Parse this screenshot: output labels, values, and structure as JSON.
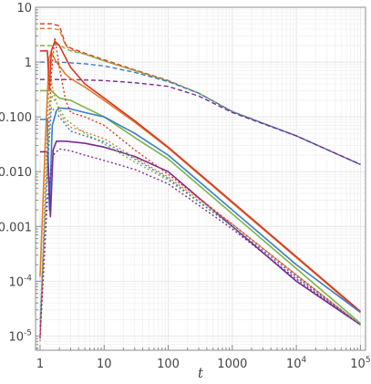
{
  "chart_data": {
    "type": "line",
    "xlabel": "t",
    "ylabel": "",
    "xscale": "log",
    "yscale": "log",
    "xlim": [
      0.85,
      120000
    ],
    "ylim": [
      5.5e-06,
      10
    ],
    "grid": true,
    "x_ticks": [
      {
        "value": 1,
        "label": "1"
      },
      {
        "value": 10,
        "label": "10"
      },
      {
        "value": 100,
        "label": "100"
      },
      {
        "value": 1000,
        "label": "1000"
      },
      {
        "value": 10000,
        "base": "10",
        "exp": "4"
      },
      {
        "value": 100000,
        "base": "10",
        "exp": "5"
      }
    ],
    "y_ticks": [
      {
        "value": 10,
        "label": "10"
      },
      {
        "value": 1,
        "label": "1"
      },
      {
        "value": 0.1,
        "label": "0.100"
      },
      {
        "value": 0.01,
        "label": "0.010"
      },
      {
        "value": 0.001,
        "label": "0.001"
      },
      {
        "value": 0.0001,
        "base": "10",
        "exp": "-4"
      },
      {
        "value": 1e-05,
        "base": "10",
        "exp": "-5"
      }
    ],
    "series": [
      {
        "color": "#dd7f2a",
        "dash": "dashed",
        "points": [
          [
            1,
            4.1
          ],
          [
            1.5,
            4.1
          ],
          [
            2,
            3.9
          ],
          [
            2.5,
            2.0
          ],
          [
            3,
            1.7
          ],
          [
            5,
            1.4
          ],
          [
            10,
            1.05
          ],
          [
            30,
            0.7
          ],
          [
            100,
            0.45
          ],
          [
            300,
            0.27
          ],
          [
            1000,
            0.125
          ],
          [
            10000,
            0.045
          ],
          [
            100000,
            0.0135
          ]
        ]
      },
      {
        "color": "#dd3323",
        "dash": "dashed",
        "points": [
          [
            1,
            5.0
          ],
          [
            1.5,
            5.0
          ],
          [
            2,
            4.6
          ],
          [
            2.5,
            2.1
          ],
          [
            3,
            1.8
          ],
          [
            5,
            1.45
          ],
          [
            10,
            1.1
          ],
          [
            30,
            0.72
          ],
          [
            100,
            0.46
          ],
          [
            300,
            0.27
          ],
          [
            1000,
            0.125
          ],
          [
            10000,
            0.045
          ],
          [
            100000,
            0.0135
          ]
        ]
      },
      {
        "color": "#7bb44a",
        "dash": "dashed",
        "points": [
          [
            1,
            2.0
          ],
          [
            1.5,
            2.0
          ],
          [
            2,
            2.1
          ],
          [
            2.5,
            1.75
          ],
          [
            3,
            1.6
          ],
          [
            5,
            1.4
          ],
          [
            10,
            1.05
          ],
          [
            30,
            0.7
          ],
          [
            100,
            0.45
          ],
          [
            300,
            0.27
          ],
          [
            1000,
            0.125
          ],
          [
            10000,
            0.045
          ],
          [
            100000,
            0.0135
          ]
        ]
      },
      {
        "color": "#3a7dc8",
        "dash": "dashed",
        "points": [
          [
            1,
            1.0
          ],
          [
            2,
            1.0
          ],
          [
            5,
            0.93
          ],
          [
            10,
            0.85
          ],
          [
            30,
            0.65
          ],
          [
            100,
            0.44
          ],
          [
            300,
            0.27
          ],
          [
            1000,
            0.125
          ],
          [
            10000,
            0.045
          ],
          [
            100000,
            0.0135
          ]
        ]
      },
      {
        "color": "#7b2a92",
        "dash": "dashed",
        "points": [
          [
            1,
            0.48
          ],
          [
            3,
            0.48
          ],
          [
            10,
            0.46
          ],
          [
            30,
            0.42
          ],
          [
            100,
            0.36
          ],
          [
            300,
            0.24
          ],
          [
            1000,
            0.12
          ],
          [
            10000,
            0.045
          ],
          [
            100000,
            0.0135
          ]
        ]
      },
      {
        "color": "#dd7f2a",
        "dash": "solid",
        "points": [
          [
            1,
            0.00012
          ],
          [
            1.2,
            0.03
          ],
          [
            1.38,
            1.2
          ],
          [
            1.5,
            1.5
          ],
          [
            1.8,
            1.0
          ],
          [
            2.5,
            0.6
          ],
          [
            3,
            0.5
          ],
          [
            5,
            0.35
          ],
          [
            10,
            0.2
          ],
          [
            30,
            0.08
          ],
          [
            100,
            0.027
          ],
          [
            1000,
            0.0027
          ],
          [
            10000,
            0.00027
          ],
          [
            100000,
            2.7e-05
          ]
        ]
      },
      {
        "color": "#dd3323",
        "dash": "solid",
        "points": [
          [
            1,
            1.6
          ],
          [
            1.3,
            1.6
          ],
          [
            1.4,
            0.3
          ],
          [
            1.5,
            1.6
          ],
          [
            1.7,
            2.4
          ],
          [
            2,
            2.0
          ],
          [
            2.5,
            1.2
          ],
          [
            3,
            0.8
          ],
          [
            5,
            0.4
          ],
          [
            10,
            0.22
          ],
          [
            30,
            0.085
          ],
          [
            100,
            0.028
          ],
          [
            1000,
            0.0028
          ],
          [
            10000,
            0.00028
          ],
          [
            100000,
            2.8e-05
          ]
        ]
      },
      {
        "color": "#7bb44a",
        "dash": "solid",
        "points": [
          [
            1,
            0.3
          ],
          [
            1.5,
            0.3
          ],
          [
            2,
            0.22
          ],
          [
            3,
            0.2
          ],
          [
            10,
            0.1
          ],
          [
            30,
            0.042
          ],
          [
            100,
            0.017
          ],
          [
            1000,
            0.0017
          ],
          [
            10000,
            0.00017
          ],
          [
            100000,
            1.7e-05
          ]
        ]
      },
      {
        "color": "#3a7dc8",
        "dash": "solid",
        "points": [
          [
            1,
            0.09
          ],
          [
            1.3,
            0.09
          ],
          [
            1.4,
            0.002
          ],
          [
            1.55,
            0.07
          ],
          [
            1.8,
            0.13
          ],
          [
            2,
            0.145
          ],
          [
            3,
            0.14
          ],
          [
            5,
            0.12
          ],
          [
            10,
            0.1
          ],
          [
            30,
            0.05
          ],
          [
            100,
            0.02
          ],
          [
            1000,
            0.002
          ],
          [
            10000,
            0.0002
          ],
          [
            100000,
            2.7e-05
          ]
        ]
      },
      {
        "color": "#7b2a92",
        "dash": "solid",
        "points": [
          [
            1,
            0.023
          ],
          [
            1.3,
            0.023
          ],
          [
            1.45,
            0.0015
          ],
          [
            1.6,
            0.025
          ],
          [
            1.8,
            0.036
          ],
          [
            2.5,
            0.036
          ],
          [
            5,
            0.033
          ],
          [
            10,
            0.028
          ],
          [
            30,
            0.019
          ],
          [
            100,
            0.01
          ],
          [
            1000,
            0.001
          ],
          [
            10000,
            0.0001
          ],
          [
            100000,
            1.6e-05
          ]
        ]
      },
      {
        "color": "#dd7f2a",
        "dash": "dotted",
        "points": [
          [
            1,
            8e-06
          ],
          [
            1.2,
            0.005
          ],
          [
            1.4,
            0.7
          ],
          [
            1.6,
            0.3
          ],
          [
            2,
            0.12
          ],
          [
            2.5,
            0.08
          ],
          [
            3,
            0.065
          ],
          [
            10,
            0.04
          ],
          [
            30,
            0.018
          ],
          [
            100,
            0.008
          ],
          [
            1000,
            0.0011
          ],
          [
            10000,
            0.00013
          ],
          [
            100000,
            1.6e-05
          ]
        ]
      },
      {
        "color": "#dd3323",
        "dash": "dotted",
        "points": [
          [
            1,
            1e-05
          ],
          [
            1.3,
            0.02
          ],
          [
            1.5,
            0.6
          ],
          [
            1.7,
            2.8
          ],
          [
            2,
            0.8
          ],
          [
            2.5,
            0.2
          ],
          [
            3,
            0.12
          ],
          [
            5,
            0.1
          ],
          [
            10,
            0.07
          ],
          [
            30,
            0.025
          ],
          [
            100,
            0.009
          ],
          [
            1000,
            0.0011
          ],
          [
            10000,
            0.00013
          ],
          [
            100000,
            1.6e-05
          ]
        ]
      },
      {
        "color": "#7bb44a",
        "dash": "dotted",
        "points": [
          [
            1,
            2e-05
          ],
          [
            1.3,
            0.02
          ],
          [
            1.5,
            0.25
          ],
          [
            1.8,
            0.18
          ],
          [
            2.5,
            0.09
          ],
          [
            5,
            0.05
          ],
          [
            10,
            0.032
          ],
          [
            30,
            0.015
          ],
          [
            100,
            0.007
          ],
          [
            1000,
            0.001
          ],
          [
            10000,
            0.00012
          ],
          [
            100000,
            1.6e-05
          ]
        ]
      },
      {
        "color": "#3a7dc8",
        "dash": "dotted",
        "points": [
          [
            1,
            1.5e-05
          ],
          [
            1.3,
            0.01
          ],
          [
            1.5,
            0.15
          ],
          [
            2,
            0.1
          ],
          [
            3,
            0.055
          ],
          [
            5,
            0.045
          ],
          [
            10,
            0.035
          ],
          [
            30,
            0.017
          ],
          [
            100,
            0.0075
          ],
          [
            1000,
            0.001
          ],
          [
            10000,
            0.00012
          ],
          [
            100000,
            1.6e-05
          ]
        ]
      },
      {
        "color": "#7b2a92",
        "dash": "dotted",
        "points": [
          [
            1,
            9e-06
          ],
          [
            1.3,
            0.003
          ],
          [
            1.6,
            0.02
          ],
          [
            2,
            0.026
          ],
          [
            3,
            0.024
          ],
          [
            5,
            0.02
          ],
          [
            10,
            0.016
          ],
          [
            30,
            0.011
          ],
          [
            100,
            0.006
          ],
          [
            1000,
            0.0009
          ],
          [
            10000,
            0.00011
          ],
          [
            100000,
            1.6e-05
          ]
        ]
      }
    ]
  }
}
